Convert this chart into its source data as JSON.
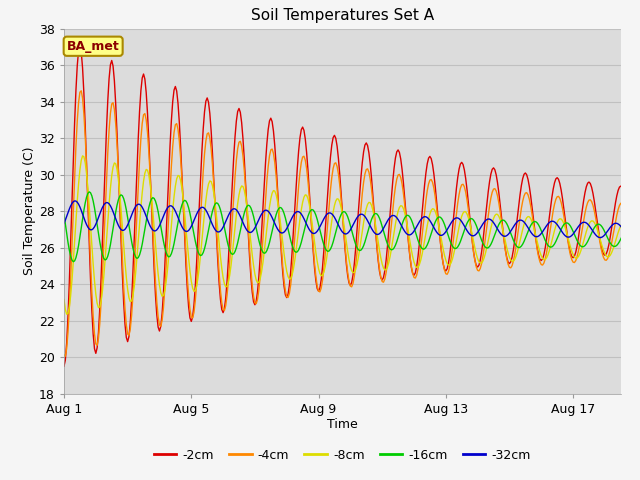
{
  "title": "Soil Temperatures Set A",
  "xlabel": "Time",
  "ylabel": "Soil Temperature (C)",
  "ylim": [
    18,
    38
  ],
  "xlim_days": 17.5,
  "annotation": "BA_met",
  "fig_bg": "#f5f5f5",
  "plot_bg": "#dcdcdc",
  "grid_color": "#c8c8c8",
  "series": [
    {
      "label": "-2cm",
      "color": "#dd0000",
      "amp0": 9.0,
      "amp_decay": 0.09,
      "phase": 0.25,
      "mean0": 28.5,
      "mean_decay": 0.065
    },
    {
      "label": "-4cm",
      "color": "#ff8800",
      "amp0": 7.5,
      "amp_decay": 0.09,
      "phase": 0.28,
      "mean0": 27.5,
      "mean_decay": 0.055
    },
    {
      "label": "-8cm",
      "color": "#dddd00",
      "amp0": 4.5,
      "amp_decay": 0.09,
      "phase": 0.35,
      "mean0": 26.8,
      "mean_decay": 0.048
    },
    {
      "label": "-16cm",
      "color": "#00cc00",
      "amp0": 2.0,
      "amp_decay": 0.07,
      "phase": 0.55,
      "mean0": 27.2,
      "mean_decay": 0.06
    },
    {
      "label": "-32cm",
      "color": "#0000cc",
      "amp0": 0.8,
      "amp_decay": 0.04,
      "phase": 1.1,
      "mean0": 27.8,
      "mean_decay": 0.075
    }
  ],
  "xticks_pos": [
    0,
    4,
    8,
    12,
    16
  ],
  "xtick_labels": [
    "Aug 1",
    "Aug 5",
    "Aug 9",
    "Aug 13",
    "Aug 17"
  ],
  "yticks": [
    18,
    20,
    22,
    24,
    26,
    28,
    30,
    32,
    34,
    36,
    38
  ],
  "legend_colors": [
    "#dd0000",
    "#ff8800",
    "#dddd00",
    "#00cc00",
    "#0000cc"
  ],
  "legend_labels": [
    "-2cm",
    "-4cm",
    "-8cm",
    "-16cm",
    "-32cm"
  ],
  "title_fontsize": 11,
  "axis_label_fontsize": 9,
  "tick_fontsize": 9,
  "legend_fontsize": 9,
  "linewidth": 1.0
}
